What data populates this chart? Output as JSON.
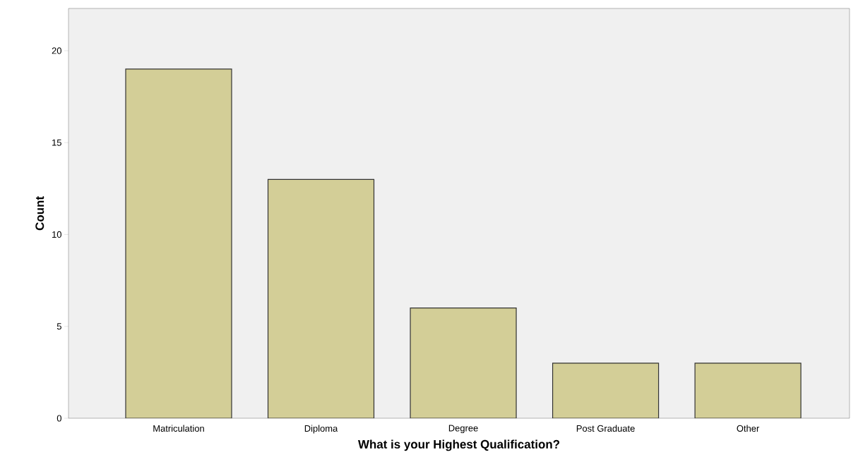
{
  "chart_data": {
    "type": "bar",
    "xlabel": "What is your Highest Qualification?",
    "ylabel": "Count",
    "categories": [
      "Matriculation",
      "Diploma",
      "Degree",
      "Post Graduate",
      "Other"
    ],
    "values": [
      19,
      13,
      6,
      3,
      3
    ],
    "color": "#d3ce97",
    "ylim": [
      0,
      22.3
    ],
    "yticks": [
      0,
      5,
      10,
      15,
      20
    ],
    "grid": false
  }
}
